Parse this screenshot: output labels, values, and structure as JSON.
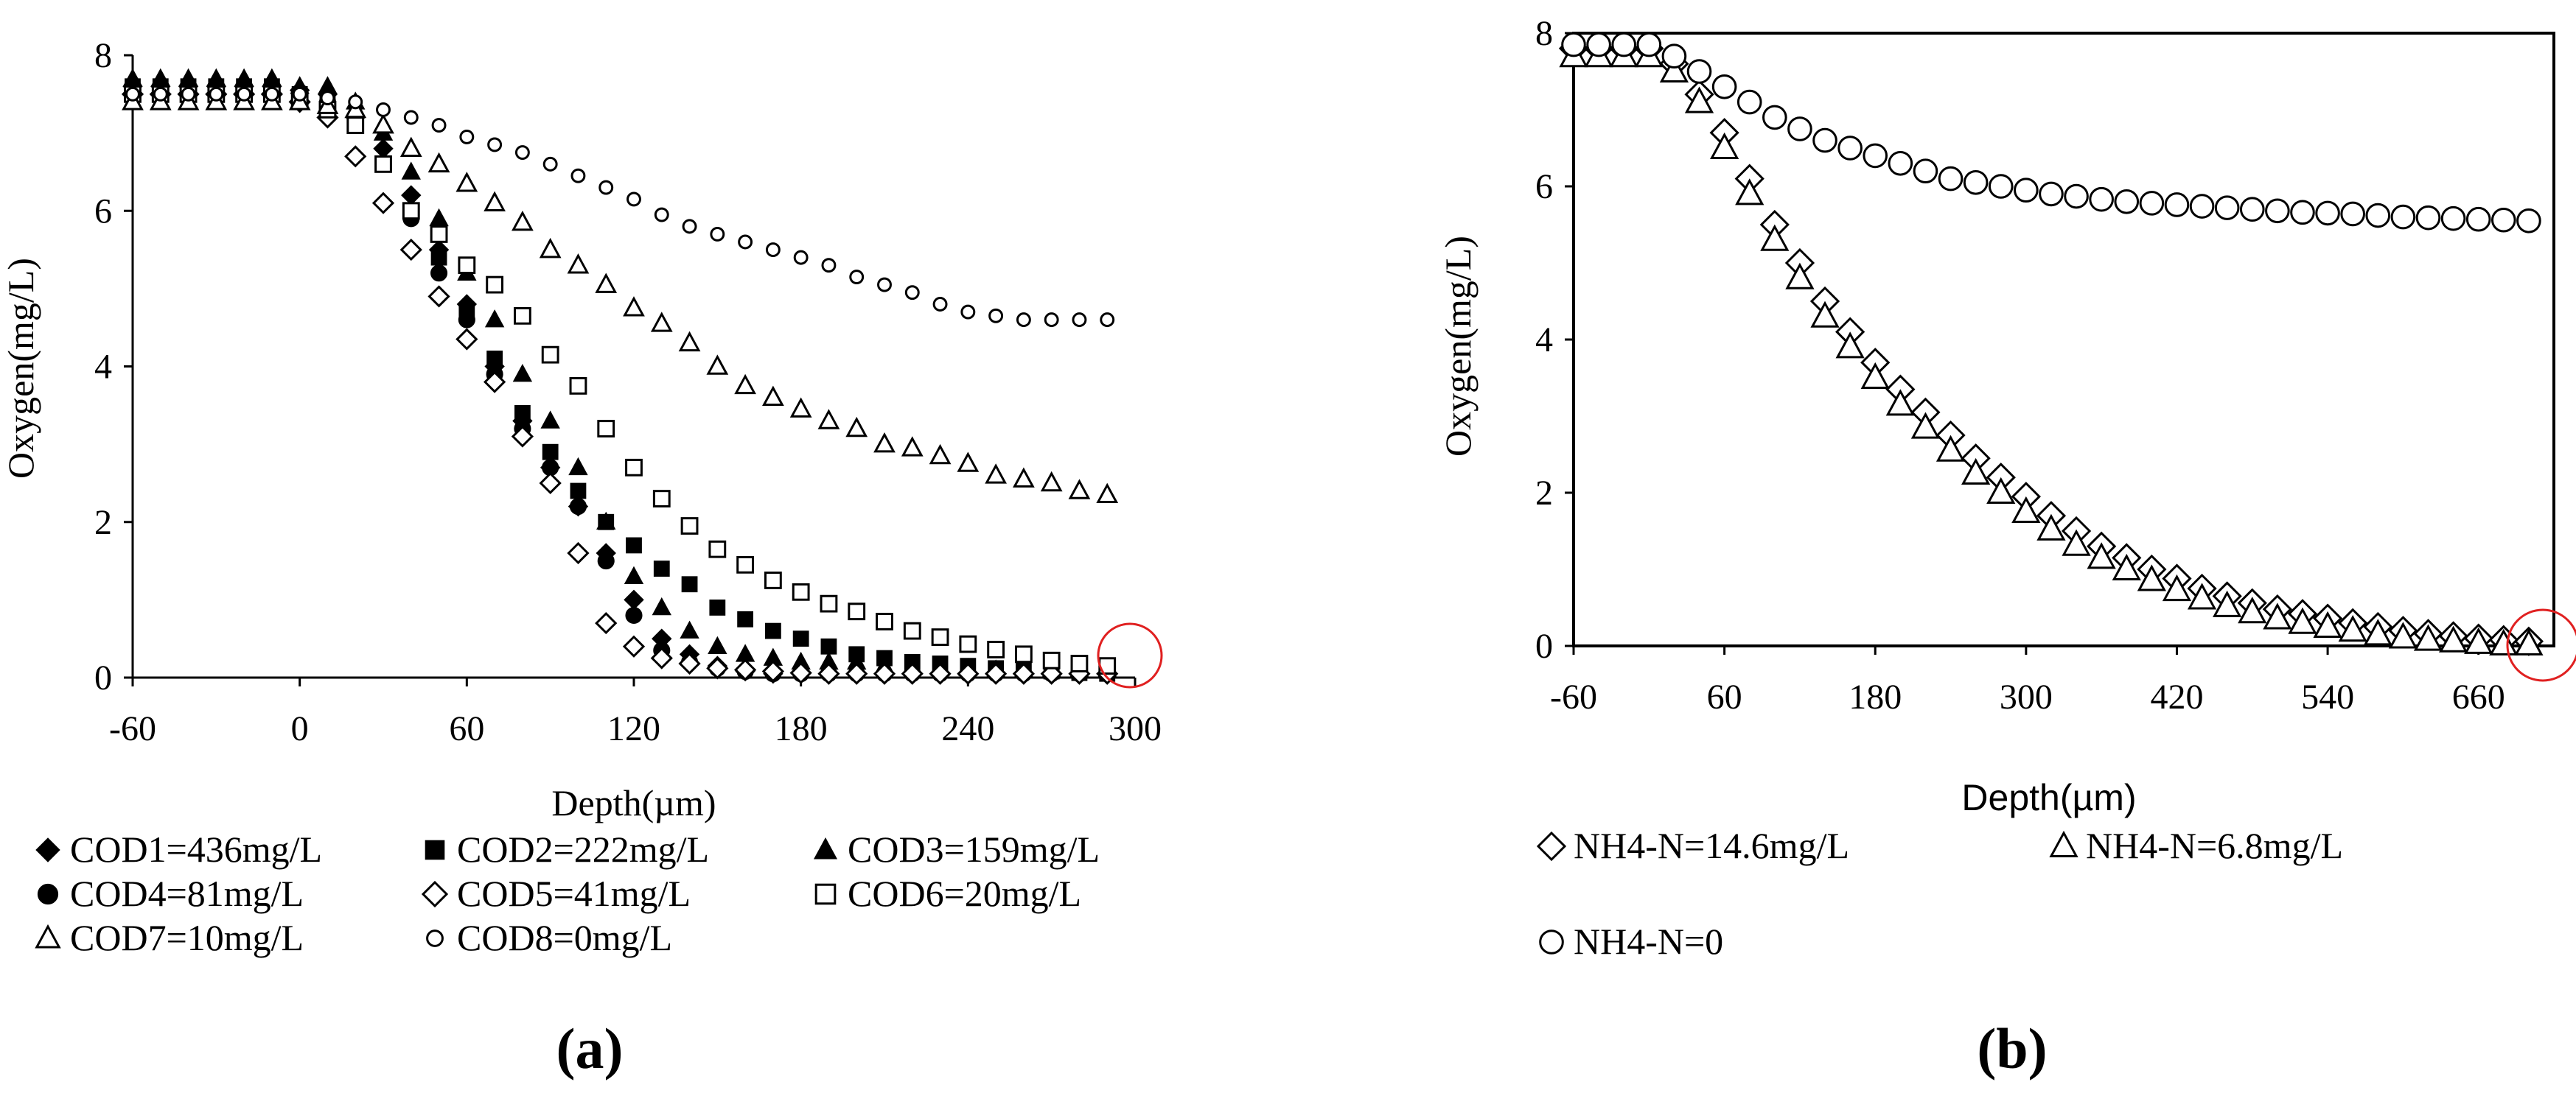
{
  "chart_data": [
    {
      "id": "a",
      "type": "scatter",
      "panel_label": "(a)",
      "title": "",
      "xlabel": "Depth(µm)",
      "ylabel": "Oxygen(mg/L)",
      "xlim": [
        -60,
        300
      ],
      "ylim": [
        0,
        8
      ],
      "xticks": [
        "-60",
        "0",
        "60",
        "120",
        "180",
        "240",
        "300"
      ],
      "yticks": [
        "0",
        "2",
        "4",
        "6",
        "8"
      ],
      "grid": false,
      "annotation": "red circle marking final depth point",
      "legend_position": "below",
      "series": [
        {
          "name": "COD1=436mg/L",
          "marker": "diamond-filled",
          "x": [
            -60,
            -50,
            -40,
            -30,
            -20,
            -10,
            0,
            10,
            20,
            30,
            40,
            50,
            60,
            70,
            80,
            90,
            100,
            110,
            120,
            130,
            140,
            150,
            160,
            170,
            180,
            190,
            200,
            210,
            220,
            230,
            240,
            250,
            260,
            270,
            280,
            290
          ],
          "y": [
            7.6,
            7.6,
            7.6,
            7.6,
            7.6,
            7.6,
            7.55,
            7.5,
            7.2,
            6.8,
            6.2,
            5.5,
            4.8,
            4.0,
            3.3,
            2.7,
            2.2,
            1.6,
            1.0,
            0.5,
            0.3,
            0.15,
            0.08,
            0.05,
            0.05,
            0.05,
            0.05,
            0.05,
            0.05,
            0.05,
            0.05,
            0.05,
            0.05,
            0.05,
            0.05,
            0.05
          ]
        },
        {
          "name": "COD2=222mg/L",
          "marker": "square-filled",
          "x": [
            -60,
            -50,
            -40,
            -30,
            -20,
            -10,
            0,
            10,
            20,
            30,
            40,
            50,
            60,
            70,
            80,
            90,
            100,
            110,
            120,
            130,
            140,
            150,
            160,
            170,
            180,
            190,
            200,
            210,
            220,
            230,
            240,
            250,
            260,
            270,
            280,
            290
          ],
          "y": [
            7.6,
            7.6,
            7.6,
            7.6,
            7.6,
            7.6,
            7.5,
            7.4,
            7.1,
            6.6,
            6.0,
            5.4,
            4.7,
            4.1,
            3.4,
            2.9,
            2.4,
            2.0,
            1.7,
            1.4,
            1.2,
            0.9,
            0.75,
            0.6,
            0.5,
            0.4,
            0.3,
            0.25,
            0.2,
            0.18,
            0.15,
            0.12,
            0.1,
            0.08,
            0.06,
            0.05
          ]
        },
        {
          "name": "COD3=159mg/L",
          "marker": "triangle-filled",
          "x": [
            -60,
            -50,
            -40,
            -30,
            -20,
            -10,
            0,
            10,
            20,
            30,
            40,
            50,
            60,
            70,
            80,
            90,
            100,
            110,
            120,
            130,
            140,
            150,
            160,
            170,
            180,
            190,
            200,
            210,
            220,
            230,
            240,
            250,
            260,
            270,
            280,
            290
          ],
          "y": [
            7.7,
            7.7,
            7.7,
            7.7,
            7.7,
            7.7,
            7.6,
            7.6,
            7.4,
            7.0,
            6.5,
            5.9,
            5.2,
            4.6,
            3.9,
            3.3,
            2.7,
            2.0,
            1.3,
            0.9,
            0.6,
            0.4,
            0.3,
            0.25,
            0.2,
            0.2,
            0.2,
            0.15,
            0.15,
            0.12,
            0.12,
            0.1,
            0.1,
            0.1,
            0.1,
            0.1
          ]
        },
        {
          "name": "COD4=81mg/L",
          "marker": "circle-filled",
          "x": [
            -60,
            -50,
            -40,
            -30,
            -20,
            -10,
            0,
            10,
            20,
            30,
            40,
            50,
            60,
            70,
            80,
            90,
            100,
            110,
            120,
            130,
            140,
            150,
            160,
            170,
            180,
            190,
            200,
            210,
            220,
            230,
            240,
            250,
            260,
            270,
            280,
            290
          ],
          "y": [
            7.6,
            7.6,
            7.6,
            7.6,
            7.6,
            7.6,
            7.5,
            7.4,
            7.1,
            6.6,
            5.9,
            5.2,
            4.6,
            3.9,
            3.2,
            2.7,
            2.2,
            1.5,
            0.8,
            0.35,
            0.2,
            0.12,
            0.08,
            0.05,
            0.05,
            0.05,
            0.05,
            0.05,
            0.05,
            0.05,
            0.05,
            0.05,
            0.05,
            0.05,
            0.05,
            0.05
          ]
        },
        {
          "name": "COD5=41mg/L",
          "marker": "diamond-open",
          "x": [
            -60,
            -50,
            -40,
            -30,
            -20,
            -10,
            0,
            10,
            20,
            30,
            40,
            50,
            60,
            70,
            80,
            90,
            100,
            110,
            120,
            130,
            140,
            150,
            160,
            170,
            180,
            190,
            200,
            210,
            220,
            230,
            240,
            250,
            260,
            270,
            280,
            290
          ],
          "y": [
            7.5,
            7.5,
            7.5,
            7.5,
            7.5,
            7.5,
            7.4,
            7.2,
            6.7,
            6.1,
            5.5,
            4.9,
            4.35,
            3.8,
            3.1,
            2.5,
            1.6,
            0.7,
            0.4,
            0.25,
            0.18,
            0.12,
            0.1,
            0.08,
            0.06,
            0.05,
            0.05,
            0.05,
            0.05,
            0.05,
            0.05,
            0.05,
            0.05,
            0.05,
            0.05,
            0.05
          ]
        },
        {
          "name": "COD6=20mg/L",
          "marker": "square-open",
          "x": [
            -60,
            -50,
            -40,
            -30,
            -20,
            -10,
            0,
            10,
            20,
            30,
            40,
            50,
            60,
            70,
            80,
            90,
            100,
            110,
            120,
            130,
            140,
            150,
            160,
            170,
            180,
            190,
            200,
            210,
            220,
            230,
            240,
            250,
            260,
            270,
            280,
            290
          ],
          "y": [
            7.5,
            7.5,
            7.5,
            7.5,
            7.5,
            7.5,
            7.45,
            7.3,
            7.1,
            6.6,
            6.0,
            5.7,
            5.3,
            5.05,
            4.65,
            4.15,
            3.75,
            3.2,
            2.7,
            2.3,
            1.95,
            1.65,
            1.45,
            1.25,
            1.1,
            0.95,
            0.85,
            0.72,
            0.6,
            0.52,
            0.43,
            0.36,
            0.3,
            0.22,
            0.18,
            0.15
          ]
        },
        {
          "name": "COD7=10mg/L",
          "marker": "triangle-open",
          "x": [
            -60,
            -50,
            -40,
            -30,
            -20,
            -10,
            0,
            10,
            20,
            30,
            40,
            50,
            60,
            70,
            80,
            90,
            100,
            110,
            120,
            130,
            140,
            150,
            160,
            170,
            180,
            190,
            200,
            210,
            220,
            230,
            240,
            250,
            260,
            270,
            280,
            290
          ],
          "y": [
            7.4,
            7.4,
            7.4,
            7.4,
            7.4,
            7.4,
            7.4,
            7.35,
            7.3,
            7.1,
            6.8,
            6.6,
            6.35,
            6.1,
            5.85,
            5.5,
            5.3,
            5.05,
            4.75,
            4.55,
            4.3,
            4.0,
            3.75,
            3.6,
            3.45,
            3.3,
            3.2,
            3.0,
            2.95,
            2.85,
            2.75,
            2.6,
            2.55,
            2.5,
            2.4,
            2.35
          ]
        },
        {
          "name": "COD8=0mg/L",
          "marker": "circle-open-small",
          "x": [
            -60,
            -50,
            -40,
            -30,
            -20,
            -10,
            0,
            10,
            20,
            30,
            40,
            50,
            60,
            70,
            80,
            90,
            100,
            110,
            120,
            130,
            140,
            150,
            160,
            170,
            180,
            190,
            200,
            210,
            220,
            230,
            240,
            250,
            260,
            270,
            280,
            290
          ],
          "y": [
            7.5,
            7.5,
            7.5,
            7.5,
            7.5,
            7.5,
            7.5,
            7.45,
            7.4,
            7.3,
            7.2,
            7.1,
            6.95,
            6.85,
            6.75,
            6.6,
            6.45,
            6.3,
            6.15,
            5.95,
            5.8,
            5.7,
            5.6,
            5.5,
            5.4,
            5.3,
            5.15,
            5.05,
            4.95,
            4.8,
            4.7,
            4.65,
            4.6,
            4.6,
            4.6,
            4.6
          ]
        }
      ]
    },
    {
      "id": "b",
      "type": "scatter",
      "panel_label": "(b)",
      "title": "",
      "xlabel": "Depth(µm)",
      "ylabel": "Oxygen(mg/L)",
      "xlim": [
        -60,
        720
      ],
      "ylim": [
        0,
        8
      ],
      "xticks": [
        "-60",
        "60",
        "180",
        "300",
        "420",
        "540",
        "660"
      ],
      "yticks": [
        "0",
        "2",
        "4",
        "6",
        "8"
      ],
      "grid": false,
      "annotation": "red circle marking final depth point",
      "legend_position": "below",
      "series": [
        {
          "name": "NH4-N=14.6mg/L",
          "marker": "diamond-open",
          "x": [
            -60,
            -40,
            -20,
            0,
            20,
            40,
            60,
            80,
            100,
            120,
            140,
            160,
            180,
            200,
            220,
            240,
            260,
            280,
            300,
            320,
            340,
            360,
            380,
            400,
            420,
            440,
            460,
            480,
            500,
            520,
            540,
            560,
            580,
            600,
            620,
            640,
            660,
            680,
            700
          ],
          "y": [
            7.8,
            7.8,
            7.8,
            7.8,
            7.6,
            7.2,
            6.7,
            6.1,
            5.5,
            5.0,
            4.5,
            4.1,
            3.7,
            3.35,
            3.05,
            2.75,
            2.45,
            2.2,
            1.95,
            1.7,
            1.5,
            1.3,
            1.15,
            1.0,
            0.88,
            0.75,
            0.65,
            0.56,
            0.48,
            0.42,
            0.36,
            0.3,
            0.25,
            0.2,
            0.16,
            0.13,
            0.1,
            0.08,
            0.06
          ]
        },
        {
          "name": "NH4-N=6.8mg/L",
          "marker": "triangle-open",
          "x": [
            -60,
            -40,
            -20,
            0,
            20,
            40,
            60,
            80,
            100,
            120,
            140,
            160,
            180,
            200,
            220,
            240,
            260,
            280,
            300,
            320,
            340,
            360,
            380,
            400,
            420,
            440,
            460,
            480,
            500,
            520,
            540,
            560,
            580,
            600,
            620,
            640,
            660,
            680,
            700
          ],
          "y": [
            7.7,
            7.7,
            7.7,
            7.7,
            7.5,
            7.1,
            6.5,
            5.9,
            5.3,
            4.8,
            4.3,
            3.9,
            3.5,
            3.15,
            2.85,
            2.55,
            2.25,
            2.0,
            1.75,
            1.52,
            1.32,
            1.15,
            1.0,
            0.86,
            0.73,
            0.62,
            0.52,
            0.44,
            0.36,
            0.3,
            0.25,
            0.2,
            0.15,
            0.11,
            0.08,
            0.06,
            0.04,
            0.02,
            0.02
          ]
        },
        {
          "name": "NH4-N=0",
          "marker": "circle-open",
          "x": [
            -60,
            -40,
            -20,
            0,
            20,
            40,
            60,
            80,
            100,
            120,
            140,
            160,
            180,
            200,
            220,
            240,
            260,
            280,
            300,
            320,
            340,
            360,
            380,
            400,
            420,
            440,
            460,
            480,
            500,
            520,
            540,
            560,
            580,
            600,
            620,
            640,
            660,
            680,
            700
          ],
          "y": [
            7.85,
            7.85,
            7.85,
            7.85,
            7.7,
            7.5,
            7.3,
            7.1,
            6.9,
            6.75,
            6.6,
            6.5,
            6.4,
            6.3,
            6.2,
            6.1,
            6.05,
            6.0,
            5.95,
            5.9,
            5.87,
            5.83,
            5.8,
            5.78,
            5.76,
            5.74,
            5.72,
            5.7,
            5.68,
            5.66,
            5.65,
            5.64,
            5.62,
            5.6,
            5.59,
            5.58,
            5.57,
            5.56,
            5.55
          ]
        }
      ]
    }
  ]
}
